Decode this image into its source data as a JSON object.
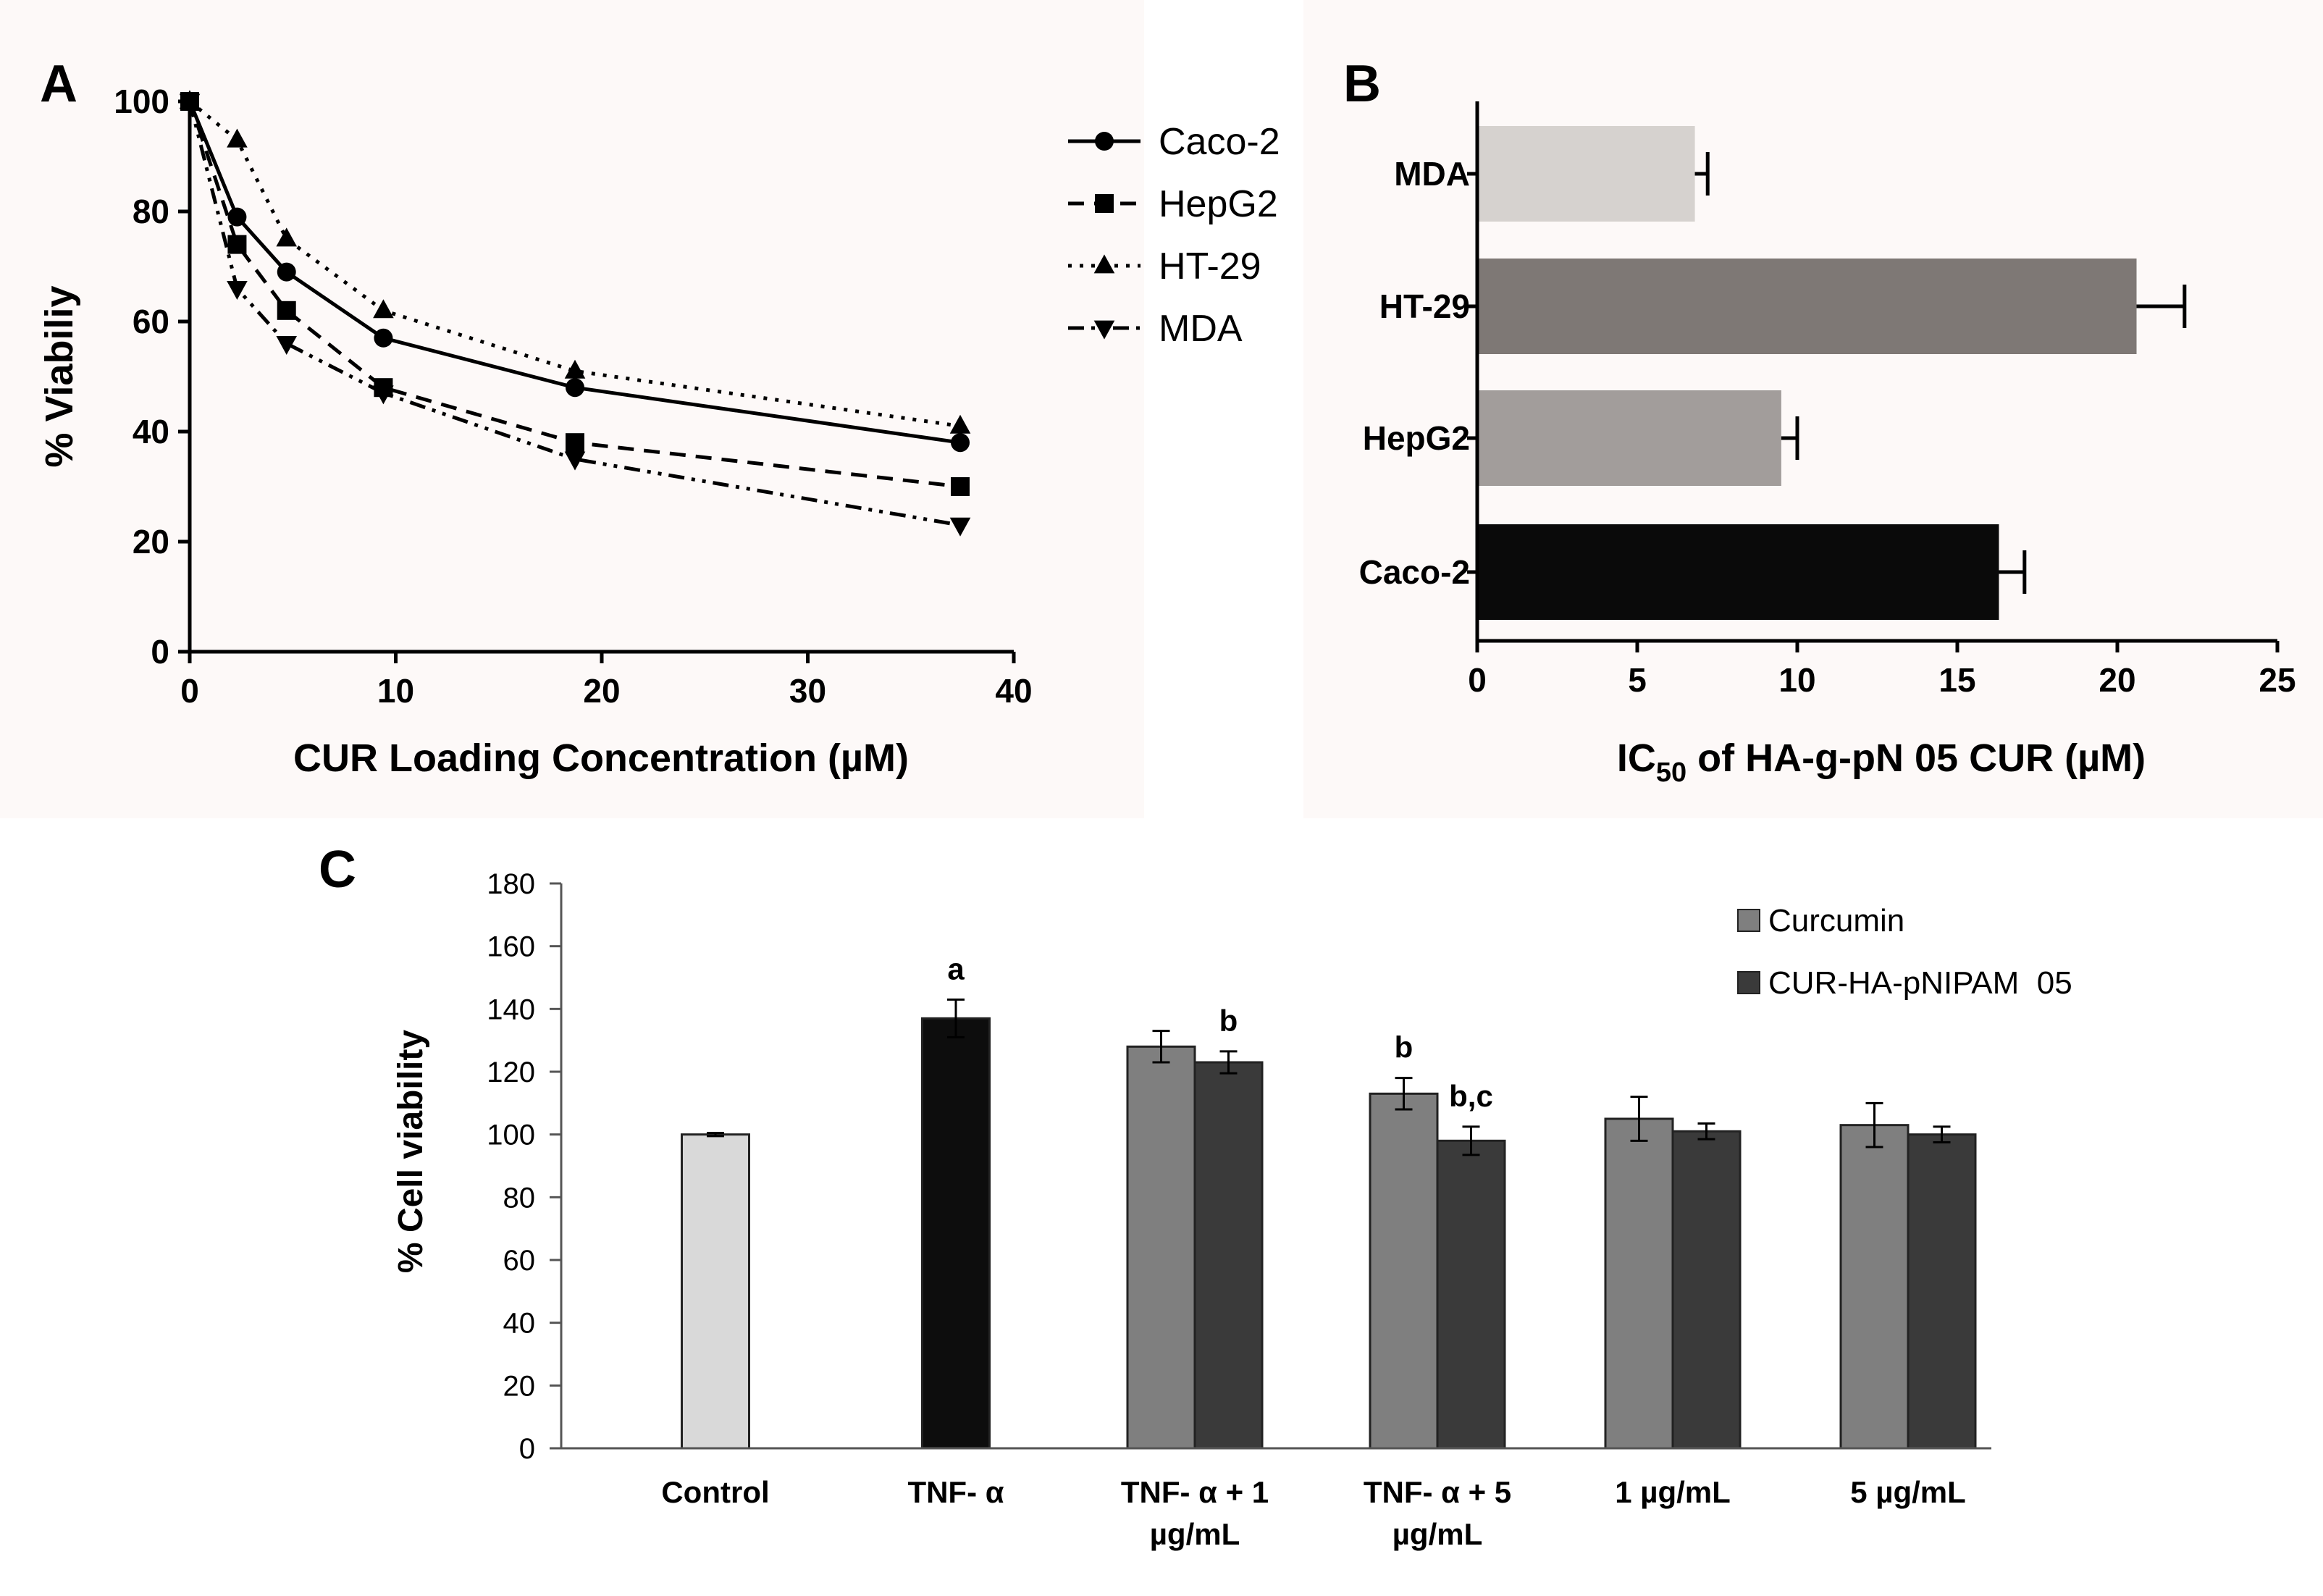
{
  "panels": {
    "A": {
      "letter": "A"
    },
    "B": {
      "letter": "B"
    },
    "C": {
      "letter": "C"
    }
  },
  "chart_data": [
    {
      "id": "A",
      "type": "line",
      "title": "",
      "xlabel": "CUR Loading Concentration (µM)",
      "ylabel": "% Viabiliy",
      "xlim": [
        0,
        40
      ],
      "ylim": [
        0,
        100
      ],
      "xticks": [
        0,
        10,
        20,
        30,
        40
      ],
      "yticks": [
        0,
        20,
        40,
        60,
        80,
        100
      ],
      "x": [
        0,
        2.3,
        4.7,
        9.4,
        18.7,
        37.4
      ],
      "series": [
        {
          "name": "Caco-2",
          "marker": "circle",
          "dash": "solid",
          "values": [
            100,
            79,
            69,
            57,
            48,
            38
          ]
        },
        {
          "name": "HepG2",
          "marker": "square",
          "dash": "dashed",
          "values": [
            100,
            74,
            62,
            48,
            38,
            30
          ]
        },
        {
          "name": "HT-29",
          "marker": "triangle-up",
          "dash": "dotted",
          "values": [
            100,
            93,
            75,
            62,
            51,
            41
          ]
        },
        {
          "name": "MDA",
          "marker": "triangle-down",
          "dash": "dashdotdot",
          "values": [
            100,
            66,
            56,
            47,
            35,
            23
          ]
        }
      ],
      "legend_position": "right"
    },
    {
      "id": "B",
      "type": "bar",
      "orientation": "horizontal",
      "xlabel_main": "IC",
      "xlabel_sub": "50",
      "xlabel_rest": " of HA-g-pN 05 CUR (µM)",
      "xlim": [
        0,
        25
      ],
      "xticks": [
        0,
        5,
        10,
        15,
        20,
        25
      ],
      "categories": [
        "MDA",
        "HT-29",
        "HepG2",
        "Caco-2"
      ],
      "values": [
        6.8,
        20.6,
        9.5,
        16.3
      ],
      "errors": [
        0.4,
        1.5,
        0.5,
        0.8
      ],
      "colors": [
        "#d6d2cf",
        "#7e7875",
        "#a29d9b",
        "#0a0a0a"
      ]
    },
    {
      "id": "C",
      "type": "bar",
      "ylabel": "% Cell viability",
      "ylim": [
        0,
        180
      ],
      "yticks": [
        0,
        20,
        40,
        60,
        80,
        100,
        120,
        140,
        160,
        180
      ],
      "categories": [
        [
          "Control"
        ],
        [
          "TNF- α"
        ],
        [
          "TNF- α + 1",
          "µg/mL"
        ],
        [
          "TNF- α + 5",
          "µg/mL"
        ],
        [
          "1 µg/mL"
        ],
        [
          "5 µg/mL"
        ]
      ],
      "series": [
        {
          "name": "Curcumin",
          "color": "#7f7f7f"
        },
        {
          "name": "CUR-HA-pNIPAM  05",
          "color": "#3a3a3a"
        }
      ],
      "bars": [
        {
          "group": 0,
          "slot": "single",
          "value": 100,
          "error": 0.5,
          "color": "#d9d9d9",
          "label": ""
        },
        {
          "group": 1,
          "slot": "single",
          "value": 137,
          "error": 6,
          "color": "#0d0d0d",
          "label": "a"
        },
        {
          "group": 2,
          "slot": "left",
          "value": 128,
          "error": 5,
          "color": "#7f7f7f",
          "label": ""
        },
        {
          "group": 2,
          "slot": "right",
          "value": 123,
          "error": 3.5,
          "color": "#3a3a3a",
          "label": "b"
        },
        {
          "group": 3,
          "slot": "left",
          "value": 113,
          "error": 5,
          "color": "#7f7f7f",
          "label": "b"
        },
        {
          "group": 3,
          "slot": "right",
          "value": 98,
          "error": 4.5,
          "color": "#3a3a3a",
          "label": "b,c"
        },
        {
          "group": 4,
          "slot": "left",
          "value": 105,
          "error": 7,
          "color": "#7f7f7f",
          "label": ""
        },
        {
          "group": 4,
          "slot": "right",
          "value": 101,
          "error": 2.5,
          "color": "#3a3a3a",
          "label": ""
        },
        {
          "group": 5,
          "slot": "left",
          "value": 103,
          "error": 7,
          "color": "#7f7f7f",
          "label": ""
        },
        {
          "group": 5,
          "slot": "right",
          "value": 100,
          "error": 2.5,
          "color": "#3a3a3a",
          "label": ""
        }
      ],
      "legend_position": "top-right"
    }
  ]
}
